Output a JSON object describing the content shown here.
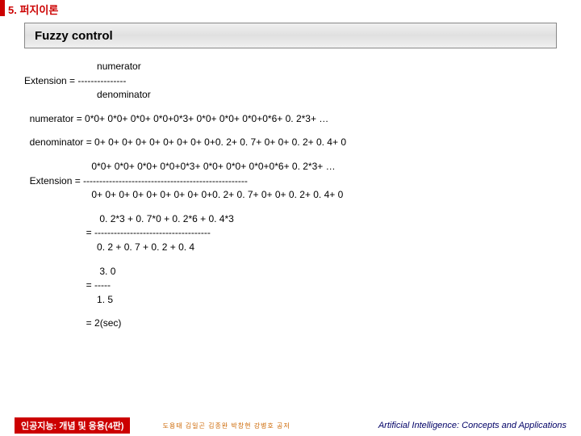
{
  "chapter": "5. 퍼지이론",
  "section_title": "Fuzzy control",
  "lines": {
    "ext1_top": "                           numerator",
    "ext1_mid": "Extension = ---------------",
    "ext1_bot": "                           denominator",
    "num_eq": "  numerator = 0*0+ 0*0+ 0*0+ 0*0+0*3+ 0*0+ 0*0+ 0*0+0*6+ 0. 2*3+ …",
    "den_eq": "  denominator = 0+ 0+ 0+ 0+ 0+ 0+ 0+ 0+ 0+0. 2+ 0. 7+ 0+ 0+ 0. 2+ 0. 4+ 0",
    "ext2_top": "                         0*0+ 0*0+ 0*0+ 0*0+0*3+ 0*0+ 0*0+ 0*0+0*6+ 0. 2*3+ …",
    "ext2_mid": "  Extension = ---------------------------------------------------",
    "ext2_bot": "                         0+ 0+ 0+ 0+ 0+ 0+ 0+ 0+ 0+0. 2+ 0. 7+ 0+ 0+ 0. 2+ 0. 4+ 0",
    "f1_top": "                            0. 2*3 + 0. 7*0 + 0. 2*6 + 0. 4*3",
    "f1_mid": "                       = ------------------------------------",
    "f1_bot": "                           0. 2 + 0. 7 + 0. 2 + 0. 4",
    "f2_top": "                            3. 0",
    "f2_mid": "                       = -----",
    "f2_bot": "                           1. 5",
    "result": "                       = 2(sec)"
  },
  "footer": {
    "left": "인공지능: 개념 및 응용(4판)",
    "middle": "도용태 김일곤 김종완 박창현 강병호 공저",
    "right": "Artificial Intelligence: Concepts and Applications"
  },
  "colors": {
    "accent": "#cc0000",
    "footer_right": "#000066",
    "footer_middle": "#cc6600"
  }
}
